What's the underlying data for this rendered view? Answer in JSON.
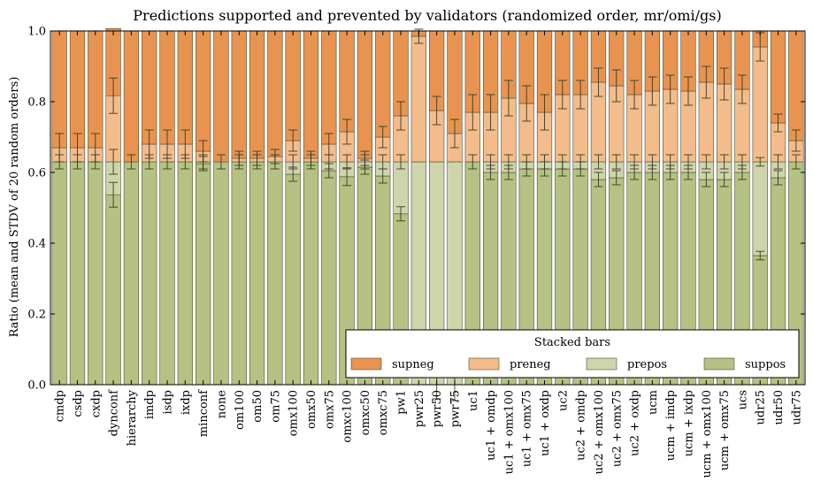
{
  "chart_data": {
    "type": "bar",
    "stacked": true,
    "title": "Predictions supported and prevented by validators (randomized order, mr/omi/gs)",
    "xlabel": "",
    "ylabel": "Ratio (mean and STDV of 20 random orders)",
    "ylim": [
      0,
      1
    ],
    "yticks": [
      "0.0",
      "0.2",
      "0.4",
      "0.6",
      "0.8",
      "1.0"
    ],
    "grid": false,
    "categories": [
      "cmdp",
      "csdp",
      "cxdp",
      "dynconf",
      "hierarchy",
      "imdp",
      "isdp",
      "ixdp",
      "minconf",
      "none",
      "om100",
      "om50",
      "om75",
      "omx100",
      "omx50",
      "omx75",
      "omxc100",
      "omxc50",
      "omxc75",
      "pw1",
      "pwr25",
      "pwr50",
      "pwr75",
      "uc1",
      "uc1 + omdp",
      "uc1 + omx100",
      "uc1 + omx75",
      "uc1 + oxdp",
      "uc2",
      "uc2 + omdp",
      "uc2 + omx100",
      "uc2 + omx75",
      "uc2 + oxdp",
      "ucm",
      "ucm + imdp",
      "ucm + ixdp",
      "ucm + omx100",
      "ucm + omx75",
      "ucs",
      "udr25",
      "udr50",
      "udr75"
    ],
    "series": [
      {
        "name": "suppos",
        "color": "#b5c283",
        "values": [
          0.63,
          0.63,
          0.63,
          0.537,
          0.63,
          0.63,
          0.63,
          0.63,
          0.625,
          0.63,
          0.63,
          0.63,
          0.63,
          0.595,
          0.63,
          0.605,
          0.588,
          0.615,
          0.59,
          0.483,
          0.0,
          0.0,
          0.0,
          0.63,
          0.6,
          0.6,
          0.61,
          0.61,
          0.61,
          0.61,
          0.58,
          0.585,
          0.6,
          0.6,
          0.6,
          0.6,
          0.58,
          0.58,
          0.6,
          0.365,
          0.585,
          0.63
        ]
      },
      {
        "name": "prepos",
        "color": "#cfd5aa",
        "values": [
          0.0,
          0.0,
          0.0,
          0.093,
          0.0,
          0.0,
          0.0,
          0.0,
          0.005,
          0.0,
          0.0,
          0.0,
          0.0,
          0.035,
          0.0,
          0.025,
          0.042,
          0.015,
          0.04,
          0.147,
          0.63,
          0.63,
          0.63,
          0.0,
          0.03,
          0.03,
          0.02,
          0.02,
          0.02,
          0.02,
          0.05,
          0.045,
          0.03,
          0.03,
          0.03,
          0.03,
          0.05,
          0.05,
          0.03,
          0.265,
          0.045,
          0.0
        ]
      },
      {
        "name": "preneg",
        "color": "#f4bc8b",
        "values": [
          0.04,
          0.04,
          0.04,
          0.187,
          0.0,
          0.05,
          0.05,
          0.05,
          0.03,
          0.0,
          0.01,
          0.01,
          0.015,
          0.06,
          0.01,
          0.05,
          0.085,
          0.01,
          0.07,
          0.13,
          0.355,
          0.145,
          0.08,
          0.14,
          0.14,
          0.18,
          0.165,
          0.14,
          0.19,
          0.19,
          0.225,
          0.215,
          0.19,
          0.2,
          0.205,
          0.2,
          0.225,
          0.22,
          0.205,
          0.325,
          0.11,
          0.06
        ]
      },
      {
        "name": "supneg",
        "color": "#e89450",
        "values": [
          0.33,
          0.33,
          0.33,
          0.19,
          0.37,
          0.32,
          0.32,
          0.32,
          0.34,
          0.37,
          0.36,
          0.36,
          0.355,
          0.31,
          0.36,
          0.32,
          0.285,
          0.36,
          0.3,
          0.24,
          0.015,
          0.225,
          0.29,
          0.23,
          0.23,
          0.19,
          0.205,
          0.23,
          0.18,
          0.18,
          0.145,
          0.155,
          0.18,
          0.17,
          0.165,
          0.17,
          0.145,
          0.15,
          0.165,
          0.045,
          0.26,
          0.31
        ]
      }
    ],
    "legend": {
      "title": "Stacked bars",
      "placement": "lower-right",
      "entries": [
        "supneg",
        "preneg",
        "prepos",
        "suppos"
      ]
    },
    "error_bars": {
      "boundary_sd": [
        [
          0.02,
          0.04,
          0.0
        ],
        [
          0.02,
          0.04,
          0.0
        ],
        [
          0.02,
          0.04,
          0.0
        ],
        [
          0.035,
          0.05,
          0.03
        ],
        [
          0.02,
          0.0,
          0.0
        ],
        [
          0.02,
          0.04,
          0.0
        ],
        [
          0.02,
          0.04,
          0.0
        ],
        [
          0.02,
          0.04,
          0.0
        ],
        [
          0.02,
          0.03,
          0.0
        ],
        [
          0.02,
          0.0,
          0.0
        ],
        [
          0.02,
          0.02,
          0.0
        ],
        [
          0.02,
          0.02,
          0.0
        ],
        [
          0.02,
          0.02,
          0.0
        ],
        [
          0.02,
          0.03,
          0.0
        ],
        [
          0.02,
          0.02,
          0.0
        ],
        [
          0.02,
          0.03,
          0.0
        ],
        [
          0.02,
          0.035,
          0.0
        ],
        [
          0.02,
          0.02,
          0.0
        ],
        [
          0.02,
          0.03,
          0.0
        ],
        [
          0.02,
          0.04,
          0.0
        ],
        [
          0.0,
          0.02,
          0.0
        ],
        [
          0.0,
          0.04,
          0.0
        ],
        [
          0.0,
          0.04,
          0.0
        ],
        [
          0.02,
          0.05,
          0.0
        ],
        [
          0.02,
          0.05,
          0.0
        ],
        [
          0.02,
          0.05,
          0.0
        ],
        [
          0.02,
          0.05,
          0.0
        ],
        [
          0.02,
          0.05,
          0.0
        ],
        [
          0.02,
          0.04,
          0.0
        ],
        [
          0.02,
          0.04,
          0.0
        ],
        [
          0.02,
          0.04,
          0.0
        ],
        [
          0.02,
          0.045,
          0.0
        ],
        [
          0.02,
          0.04,
          0.0
        ],
        [
          0.02,
          0.04,
          0.0
        ],
        [
          0.02,
          0.04,
          0.0
        ],
        [
          0.02,
          0.04,
          0.0
        ],
        [
          0.02,
          0.045,
          0.0
        ],
        [
          0.02,
          0.045,
          0.0
        ],
        [
          0.02,
          0.04,
          0.0
        ],
        [
          0.012,
          0.04,
          0.0
        ],
        [
          0.02,
          0.025,
          0.0
        ],
        [
          0.02,
          0.03,
          0.0
        ]
      ],
      "prepos_sd": [
        0,
        0,
        0,
        0.035,
        0,
        0,
        0,
        0,
        0.02,
        0,
        0,
        0,
        0,
        0.02,
        0,
        0.02,
        0.025,
        0.02,
        0.02,
        0.02,
        0,
        0.04,
        0.045,
        0,
        0.02,
        0.02,
        0.02,
        0.02,
        0.02,
        0.02,
        0.02,
        0.02,
        0.02,
        0.02,
        0.02,
        0.02,
        0.02,
        0.02,
        0.02,
        0.012,
        0.02,
        0
      ]
    }
  }
}
